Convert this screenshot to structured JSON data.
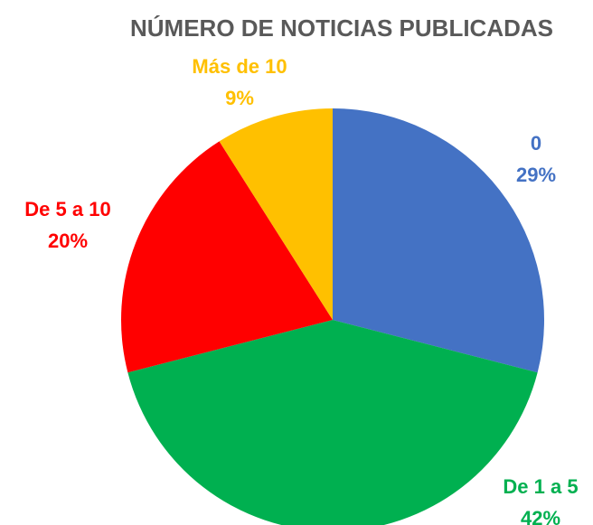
{
  "chart_data": {
    "type": "pie",
    "title": "NÚMERO DE NOTICIAS PUBLICADAS",
    "categories": [
      "0",
      "De 1 a 5",
      "De 5 a 10",
      "Más de 10"
    ],
    "values": [
      29,
      42,
      20,
      9
    ],
    "value_labels": [
      "29%",
      "42%",
      "20%",
      "9%"
    ],
    "colors": [
      "#4472c4",
      "#00b050",
      "#ff0000",
      "#ffc000"
    ]
  }
}
